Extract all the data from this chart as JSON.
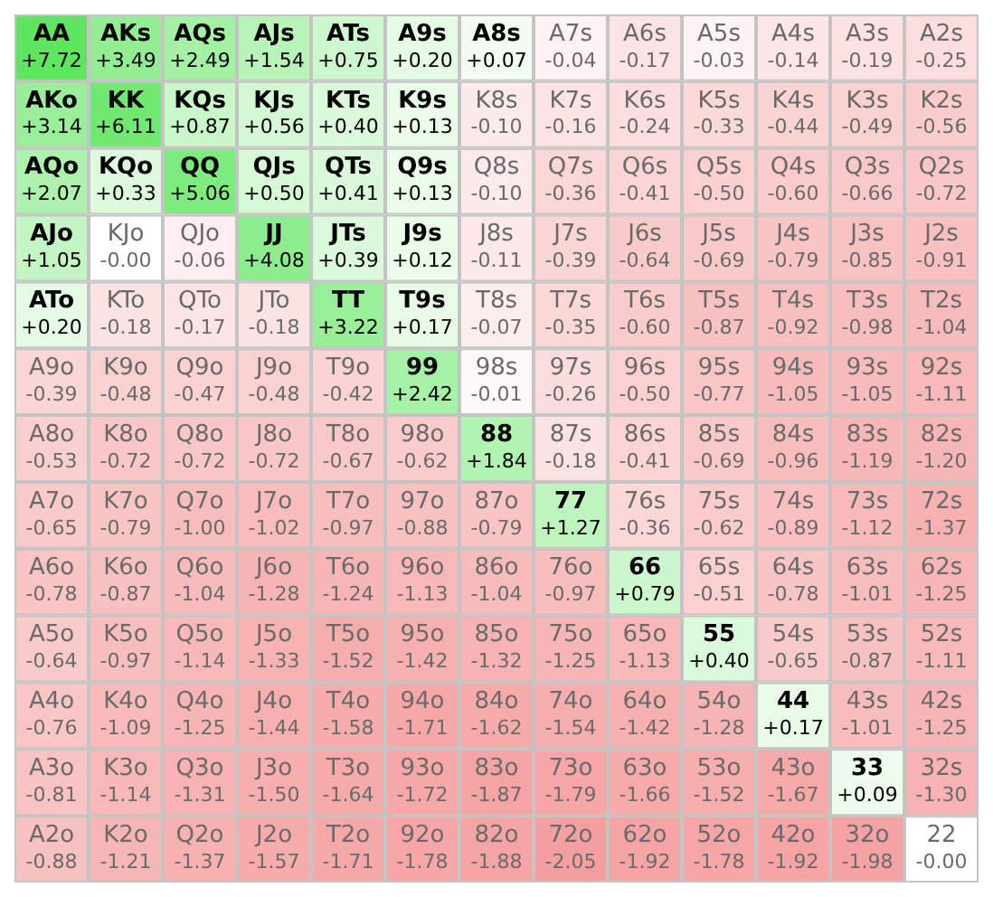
{
  "chart_data": {
    "type": "heatmap",
    "categories": [
      null,
      null,
      null,
      null,
      null,
      null,
      null,
      null,
      null,
      null,
      null,
      null,
      null
    ],
    "y_categories": [
      null,
      null,
      null,
      null,
      null,
      null,
      null,
      null,
      null,
      null,
      null,
      null,
      null
    ],
    "tick_labels": false,
    "cells": [
      [
        7.72,
        3.49,
        2.49,
        1.54,
        0.75,
        0.2,
        0.07,
        -0.04,
        -0.17,
        -0.03,
        -0.14,
        -0.19,
        -0.25
      ],
      [
        3.14,
        6.11,
        0.87,
        0.56,
        0.4,
        0.13,
        -0.1,
        -0.16,
        -0.24,
        -0.33,
        -0.44,
        -0.49,
        -0.56
      ],
      [
        2.07,
        0.33,
        5.06,
        0.5,
        0.41,
        0.13,
        -0.1,
        -0.36,
        -0.41,
        -0.5,
        -0.6,
        -0.66,
        -0.72
      ],
      [
        1.05,
        0.0,
        -0.06,
        4.08,
        0.39,
        0.12,
        -0.11,
        -0.39,
        -0.64,
        -0.69,
        -0.79,
        -0.85,
        -0.91
      ],
      [
        0.2,
        -0.18,
        -0.17,
        -0.18,
        3.22,
        0.17,
        -0.07,
        -0.35,
        -0.6,
        -0.87,
        -0.92,
        -0.98,
        -1.04
      ],
      [
        -0.39,
        -0.48,
        -0.47,
        -0.48,
        -0.42,
        2.42,
        -0.01,
        -0.26,
        -0.5,
        -0.77,
        -1.05,
        -1.05,
        -1.11
      ],
      [
        -0.53,
        -0.72,
        -0.72,
        -0.72,
        -0.67,
        -0.62,
        1.84,
        -0.18,
        -0.41,
        -0.69,
        -0.96,
        -1.19,
        -1.2
      ],
      [
        -0.65,
        -0.79,
        -1.0,
        -1.02,
        -0.97,
        -0.88,
        -0.79,
        1.27,
        -0.36,
        -0.62,
        -0.89,
        -1.12,
        -1.37
      ],
      [
        -0.78,
        -0.87,
        -1.04,
        -1.28,
        -1.24,
        -1.13,
        -1.04,
        -0.97,
        0.79,
        -0.51,
        -0.78,
        -1.01,
        -1.25
      ],
      [
        -0.64,
        -0.97,
        -1.14,
        -1.33,
        -1.52,
        -1.42,
        -1.32,
        -1.25,
        -1.13,
        0.4,
        -0.65,
        -0.87,
        -1.11
      ],
      [
        -0.76,
        -1.09,
        -1.25,
        -1.44,
        -1.58,
        -1.71,
        -1.62,
        -1.54,
        -1.42,
        -1.28,
        0.17,
        -1.01,
        -1.25
      ],
      [
        -0.81,
        -1.14,
        -1.31,
        -1.5,
        -1.64,
        -1.72,
        -1.87,
        -1.79,
        -1.66,
        -1.52,
        -1.67,
        0.09,
        -1.3
      ],
      [
        -0.88,
        -1.21,
        -1.37,
        -1.57,
        -1.71,
        -1.78,
        -1.88,
        -2.05,
        -1.92,
        -1.78,
        -1.92,
        -1.98,
        0.0
      ]
    ],
    "cell_labels": [
      [
        "+7.72",
        "+3.49",
        "+2.49",
        "+1.54",
        "+0.75",
        "+0.20",
        "+0.07",
        "-0.04",
        "-0.17",
        "-0.03",
        "-0.14",
        "-0.19",
        "-0.25"
      ],
      [
        "+3.14",
        "+6.11",
        "+0.87",
        "+0.56",
        "+0.40",
        "+0.13",
        "-0.10",
        "-0.16",
        "-0.24",
        "-0.33",
        "-0.44",
        "-0.49",
        "-0.56"
      ],
      [
        "+2.07",
        "+0.33",
        "+5.06",
        "+0.50",
        "+0.41",
        "+0.13",
        "-0.10",
        "-0.36",
        "-0.41",
        "-0.50",
        "-0.60",
        "-0.66",
        "-0.72"
      ],
      [
        "+1.05",
        "-0.00",
        "-0.06",
        "+4.08",
        "+0.39",
        "+0.12",
        "-0.11",
        "-0.39",
        "-0.64",
        "-0.69",
        "-0.79",
        "-0.85",
        "-0.91"
      ],
      [
        "+0.20",
        "-0.18",
        "-0.17",
        "-0.18",
        "+3.22",
        "+0.17",
        "-0.07",
        "-0.35",
        "-0.60",
        "-0.87",
        "-0.92",
        "-0.98",
        "-1.04"
      ],
      [
        "-0.39",
        "-0.48",
        "-0.47",
        "-0.48",
        "-0.42",
        "+2.42",
        "-0.01",
        "-0.26",
        "-0.50",
        "-0.77",
        "-1.05",
        "-1.05",
        "-1.11"
      ],
      [
        "-0.53",
        "-0.72",
        "-0.72",
        "-0.72",
        "-0.67",
        "-0.62",
        "+1.84",
        "-0.18",
        "-0.41",
        "-0.69",
        "-0.96",
        "-1.19",
        "-1.20"
      ],
      [
        "-0.65",
        "-0.79",
        "-1.00",
        "-1.02",
        "-0.97",
        "-0.88",
        "-0.79",
        "+1.27",
        "-0.36",
        "-0.62",
        "-0.89",
        "-1.12",
        "-1.37"
      ],
      [
        "-0.78",
        "-0.87",
        "-1.04",
        "-1.28",
        "-1.24",
        "-1.13",
        "-1.04",
        "-0.97",
        "+0.79",
        "-0.51",
        "-0.78",
        "-1.01",
        "-1.25"
      ],
      [
        "-0.64",
        "-0.97",
        "-1.14",
        "-1.33",
        "-1.52",
        "-1.42",
        "-1.32",
        "-1.25",
        "-1.13",
        "+0.40",
        "-0.65",
        "-0.87",
        "-1.11"
      ],
      [
        "-0.76",
        "-1.09",
        "-1.25",
        "-1.44",
        "-1.58",
        "-1.71",
        "-1.62",
        "-1.54",
        "-1.42",
        "-1.28",
        "+0.17",
        "-1.01",
        "-1.25"
      ],
      [
        "-0.81",
        "-1.14",
        "-1.31",
        "-1.50",
        "-1.64",
        "-1.72",
        "-1.87",
        "-1.79",
        "-1.66",
        "-1.52",
        "-1.67",
        "+0.09",
        "-1.30"
      ],
      [
        "-0.88",
        "-1.21",
        "-1.37",
        "-1.57",
        "-1.71",
        "-1.78",
        "-1.88",
        "-2.05",
        "-1.92",
        "-1.78",
        "-1.92",
        "-1.98",
        "-0.00"
      ]
    ],
    "annotations": [
      "AA",
      "AKs",
      "AQs",
      "AJs",
      "ATs",
      "A9s",
      "A8s",
      "A7s",
      "A6s",
      "A5s",
      "A4s",
      "A3s",
      "A2s",
      "AKo",
      "KK",
      "KQs",
      "KJs",
      "KTs",
      "K9s",
      "K8s",
      "K7s",
      "K6s",
      "K5s",
      "K4s",
      "K3s",
      "K2s",
      "AQo",
      "KQo",
      "QQ",
      "QJs",
      "QTs",
      "Q9s",
      "Q8s",
      "Q7s",
      "Q6s",
      "Q5s",
      "Q4s",
      "Q3s",
      "Q2s",
      "AJo",
      "KJo",
      "QJo",
      "JJ",
      "JTs",
      "J9s",
      "J8s",
      "J7s",
      "J6s",
      "J5s",
      "J4s",
      "J3s",
      "J2s",
      "ATo",
      "KTo",
      "QTo",
      "JTo",
      "TT",
      "T9s",
      "T8s",
      "T7s",
      "T6s",
      "T5s",
      "T4s",
      "T3s",
      "T2s",
      "A9o",
      "K9o",
      "Q9o",
      "J9o",
      "T9o",
      "99",
      "98s",
      "97s",
      "96s",
      "95s",
      "94s",
      "93s",
      "92s",
      "A8o",
      "K8o",
      "Q8o",
      "J8o",
      "T8o",
      "98o",
      "88",
      "87s",
      "86s",
      "85s",
      "84s",
      "83s",
      "82s",
      "A7o",
      "K7o",
      "Q7o",
      "J7o",
      "T7o",
      "97o",
      "87o",
      "77",
      "76s",
      "75s",
      "74s",
      "73s",
      "72s",
      "A6o",
      "K6o",
      "Q6o",
      "J6o",
      "T6o",
      "96o",
      "86o",
      "76o",
      "66",
      "65s",
      "64s",
      "63s",
      "62s",
      "A5o",
      "K5o",
      "Q5o",
      "J5o",
      "T5o",
      "95o",
      "85o",
      "75o",
      "65o",
      "55",
      "54s",
      "53s",
      "52s",
      "A4o",
      "K4o",
      "Q4o",
      "J4o",
      "T4o",
      "94o",
      "84o",
      "74o",
      "64o",
      "54o",
      "44",
      "43s",
      "42s",
      "A3o",
      "K3o",
      "Q3o",
      "J3o",
      "T3o",
      "93o",
      "83o",
      "73o",
      "63o",
      "53o",
      "43o",
      "33",
      "32s",
      "A2o",
      "K2o",
      "Q2o",
      "J2o",
      "T2o",
      "92o",
      "82o",
      "72o",
      "62o",
      "52o",
      "42o",
      "32o",
      "22"
    ]
  }
}
